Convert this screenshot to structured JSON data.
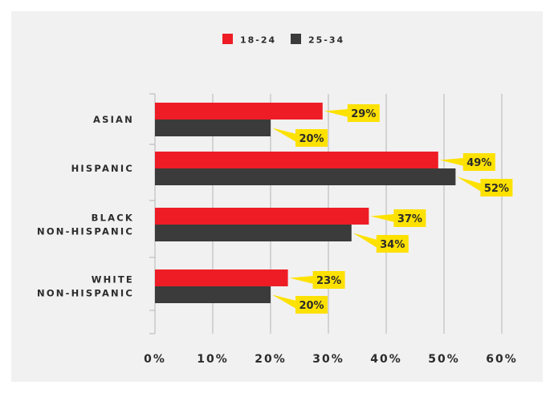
{
  "colors": {
    "series_1": "#ee1d25",
    "series_2": "#3b3b3b",
    "label_bg": "#fde100",
    "grid": "#b5b5b5",
    "background": "#f1f1f1",
    "text": "#2b2b2b"
  },
  "chart_data": {
    "type": "bar",
    "orientation": "horizontal",
    "title": "",
    "xlabel": "",
    "ylabel": "",
    "categories": [
      "ASIAN",
      "HISPANIC",
      "BLACK NON-HISPANIC",
      "WHITE NON-HISPANIC"
    ],
    "category_lines": [
      [
        "ASIAN"
      ],
      [
        "HISPANIC"
      ],
      [
        "BLACK",
        "NON-HISPANIC"
      ],
      [
        "WHITE",
        "NON-HISPANIC"
      ]
    ],
    "series": [
      {
        "name": "18-24",
        "values": [
          29,
          49,
          37,
          23
        ],
        "labels": [
          "29%",
          "49%",
          "37%",
          "23%"
        ]
      },
      {
        "name": "25-34",
        "values": [
          20,
          52,
          34,
          20
        ],
        "labels": [
          "20%",
          "52%",
          "34%",
          "20%"
        ]
      }
    ],
    "xlim": [
      0,
      60
    ],
    "xticks": [
      0,
      10,
      20,
      30,
      40,
      50,
      60
    ],
    "xtick_labels": [
      "0%",
      "10%",
      "20%",
      "30%",
      "40%",
      "50%",
      "60%"
    ],
    "grid": "vertical",
    "legend_position": "top-center"
  }
}
